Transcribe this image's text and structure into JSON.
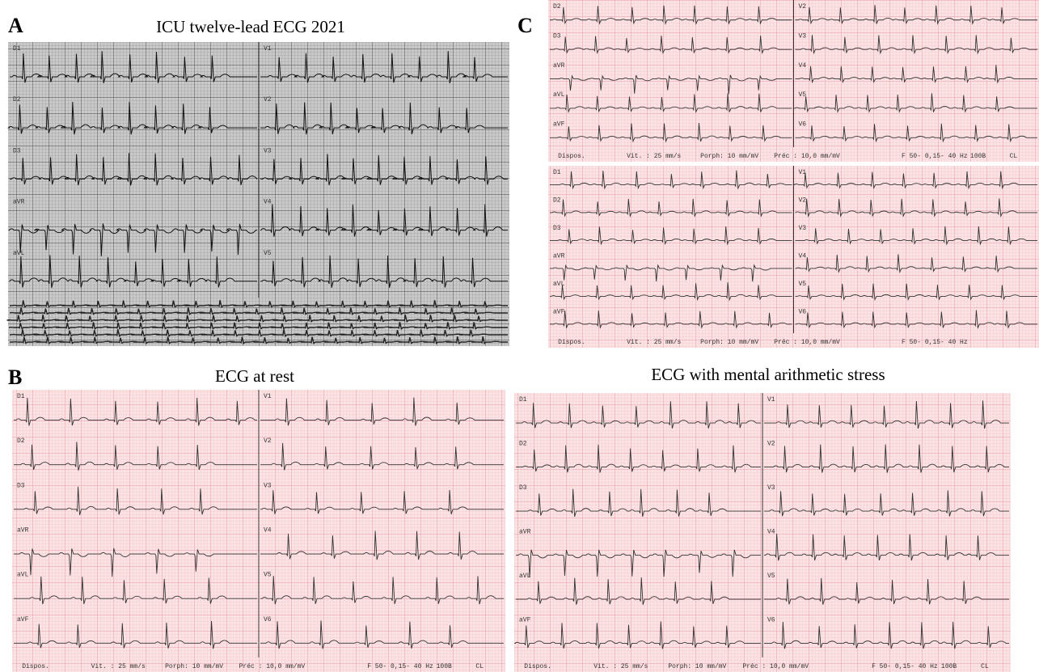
{
  "figure": {
    "panels": [
      {
        "letter": "A",
        "title": "ICU twelve-lead ECG 2021",
        "strips": [
          {
            "leads_left": [
              "D1",
              "D2",
              "D3",
              "aVR",
              "aVL"
            ],
            "leads_right": [
              "V1",
              "V2",
              "V3",
              "V4",
              "V5"
            ]
          }
        ]
      },
      {
        "letter": "C",
        "strips": [
          {
            "leads_left": [
              "D2",
              "D3",
              "aVR",
              "aVL",
              "aVF"
            ],
            "leads_right": [
              "V2",
              "V3",
              "V4",
              "V5",
              "V6"
            ],
            "footer": [
              "Dispos.",
              "Vit. : 25 mm/s",
              "Porph: 10 mm/mV",
              "Préc : 10,0 mm/mV",
              "F 50- 0,15- 40 Hz",
              "100B",
              "CL"
            ]
          },
          {
            "leads_left": [
              "D1",
              "D2",
              "D3",
              "aVR",
              "aVL",
              "aVF"
            ],
            "leads_right": [
              "V1",
              "V2",
              "V3",
              "V4",
              "V5",
              "V6"
            ],
            "footer": [
              "Dispos.",
              "Vit. : 25 mm/s",
              "Porph: 10 mm/mV",
              "Préc : 10,0 mm/mV",
              "F 50- 0,15- 40 Hz"
            ]
          }
        ]
      },
      {
        "letter": "B",
        "title": "ECG at rest",
        "strips": [
          {
            "leads_left": [
              "D1",
              "D2",
              "D3",
              "aVR",
              "aVL",
              "aVF"
            ],
            "leads_right": [
              "V1",
              "V2",
              "V3",
              "V4",
              "V5",
              "V6"
            ],
            "footer": [
              "Dispos.",
              "Vit. : 25 mm/s",
              "Porph: 10 mm/mV",
              "Préc : 10,0 mm/mV",
              "F 50- 0,15- 40 Hz",
              "100B",
              "CL"
            ]
          }
        ]
      },
      {
        "title": "ECG with mental arithmetic stress",
        "strips": [
          {
            "leads_left": [
              "D1",
              "D2",
              "D3",
              "aVR",
              "aVL",
              "aVF"
            ],
            "leads_right": [
              "V1",
              "V2",
              "V3",
              "V4",
              "V5",
              "V6"
            ],
            "footer": [
              "Dispos.",
              "Vit. : 25 mm/s",
              "Porph: 10 mm/mV",
              "Préc : 10,0 mm/mV",
              "F 50- 0,15- 40 Hz",
              "100B",
              "CL"
            ]
          }
        ]
      }
    ]
  }
}
